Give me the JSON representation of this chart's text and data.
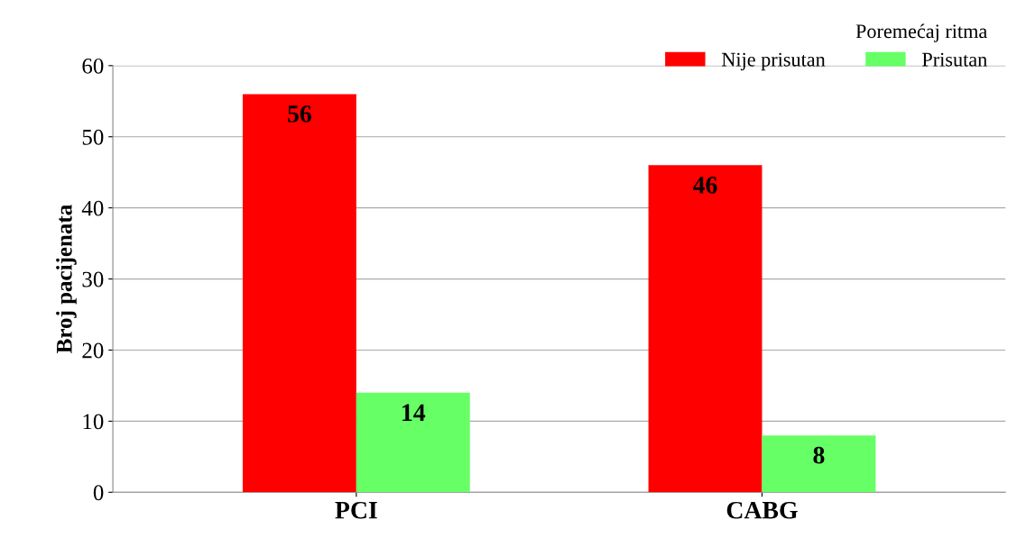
{
  "chart_data": {
    "type": "bar",
    "ylabel": "Broj pacijenata",
    "legend_title": "Poremećaj ritma",
    "categories": [
      "PCI",
      "CABG"
    ],
    "series": [
      {
        "name": "Nije prisutan",
        "color": "#ff0000",
        "values": [
          56,
          46
        ]
      },
      {
        "name": "Prisutan",
        "color": "#66ff66",
        "values": [
          14,
          8
        ]
      }
    ],
    "ylim": [
      0,
      60
    ],
    "yticks": [
      0,
      10,
      20,
      30,
      40,
      50,
      60
    ],
    "grid": "y",
    "legend": "top right",
    "data_labels": true
  }
}
